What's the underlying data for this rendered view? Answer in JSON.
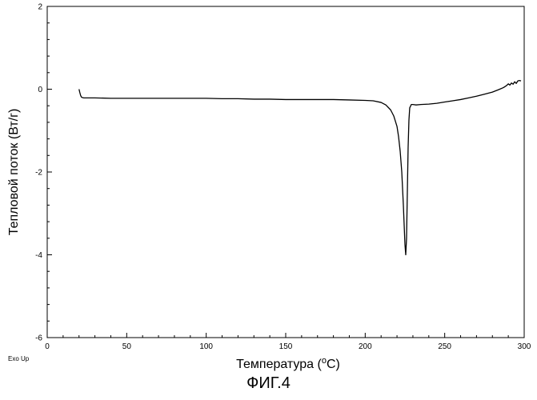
{
  "chart_data": {
    "type": "line",
    "xlabel_main": "Температура (",
    "xlabel_sup": "o",
    "xlabel_tail": "C)",
    "ylabel": "Тепловой поток (Вт/г)",
    "xlim": [
      0,
      300
    ],
    "ylim": [
      -6,
      2
    ],
    "x_ticks": [
      0,
      50,
      100,
      150,
      200,
      250,
      300
    ],
    "y_ticks": [
      2,
      0,
      -2,
      -4,
      -6
    ],
    "x_minor_step": 10,
    "y_minor_step": 0.4,
    "grid": false,
    "exo_note": "Exo Up",
    "series": [
      {
        "x": [
          20.0,
          20.5,
          21.0,
          21.5,
          22,
          23,
          25,
          30,
          40,
          50,
          60,
          70,
          80,
          90,
          100,
          110,
          120,
          130,
          140,
          150,
          160,
          170,
          180,
          190,
          200,
          205,
          210,
          213,
          216,
          218,
          220,
          221,
          222,
          223,
          224,
          225,
          225.5,
          226,
          226.5,
          227,
          227.5,
          228,
          229,
          230,
          232,
          235,
          240,
          245,
          250,
          255,
          260,
          265,
          270,
          275,
          280,
          284,
          287,
          289,
          290,
          291,
          292,
          293,
          294,
          295,
          296,
          297,
          298
        ],
        "y": [
          0.0,
          -0.08,
          -0.15,
          -0.19,
          -0.2,
          -0.21,
          -0.21,
          -0.21,
          -0.22,
          -0.22,
          -0.22,
          -0.22,
          -0.22,
          -0.22,
          -0.22,
          -0.23,
          -0.23,
          -0.24,
          -0.24,
          -0.25,
          -0.25,
          -0.25,
          -0.25,
          -0.26,
          -0.27,
          -0.28,
          -0.32,
          -0.38,
          -0.5,
          -0.65,
          -0.9,
          -1.15,
          -1.5,
          -2.0,
          -2.8,
          -3.75,
          -4.0,
          -3.6,
          -2.5,
          -1.4,
          -0.75,
          -0.45,
          -0.37,
          -0.37,
          -0.38,
          -0.37,
          -0.36,
          -0.34,
          -0.31,
          -0.28,
          -0.25,
          -0.21,
          -0.17,
          -0.12,
          -0.07,
          -0.01,
          0.04,
          0.09,
          0.13,
          0.1,
          0.15,
          0.12,
          0.18,
          0.14,
          0.2,
          0.21,
          0.2
        ]
      }
    ]
  },
  "figure_label": "ФИГ.4"
}
